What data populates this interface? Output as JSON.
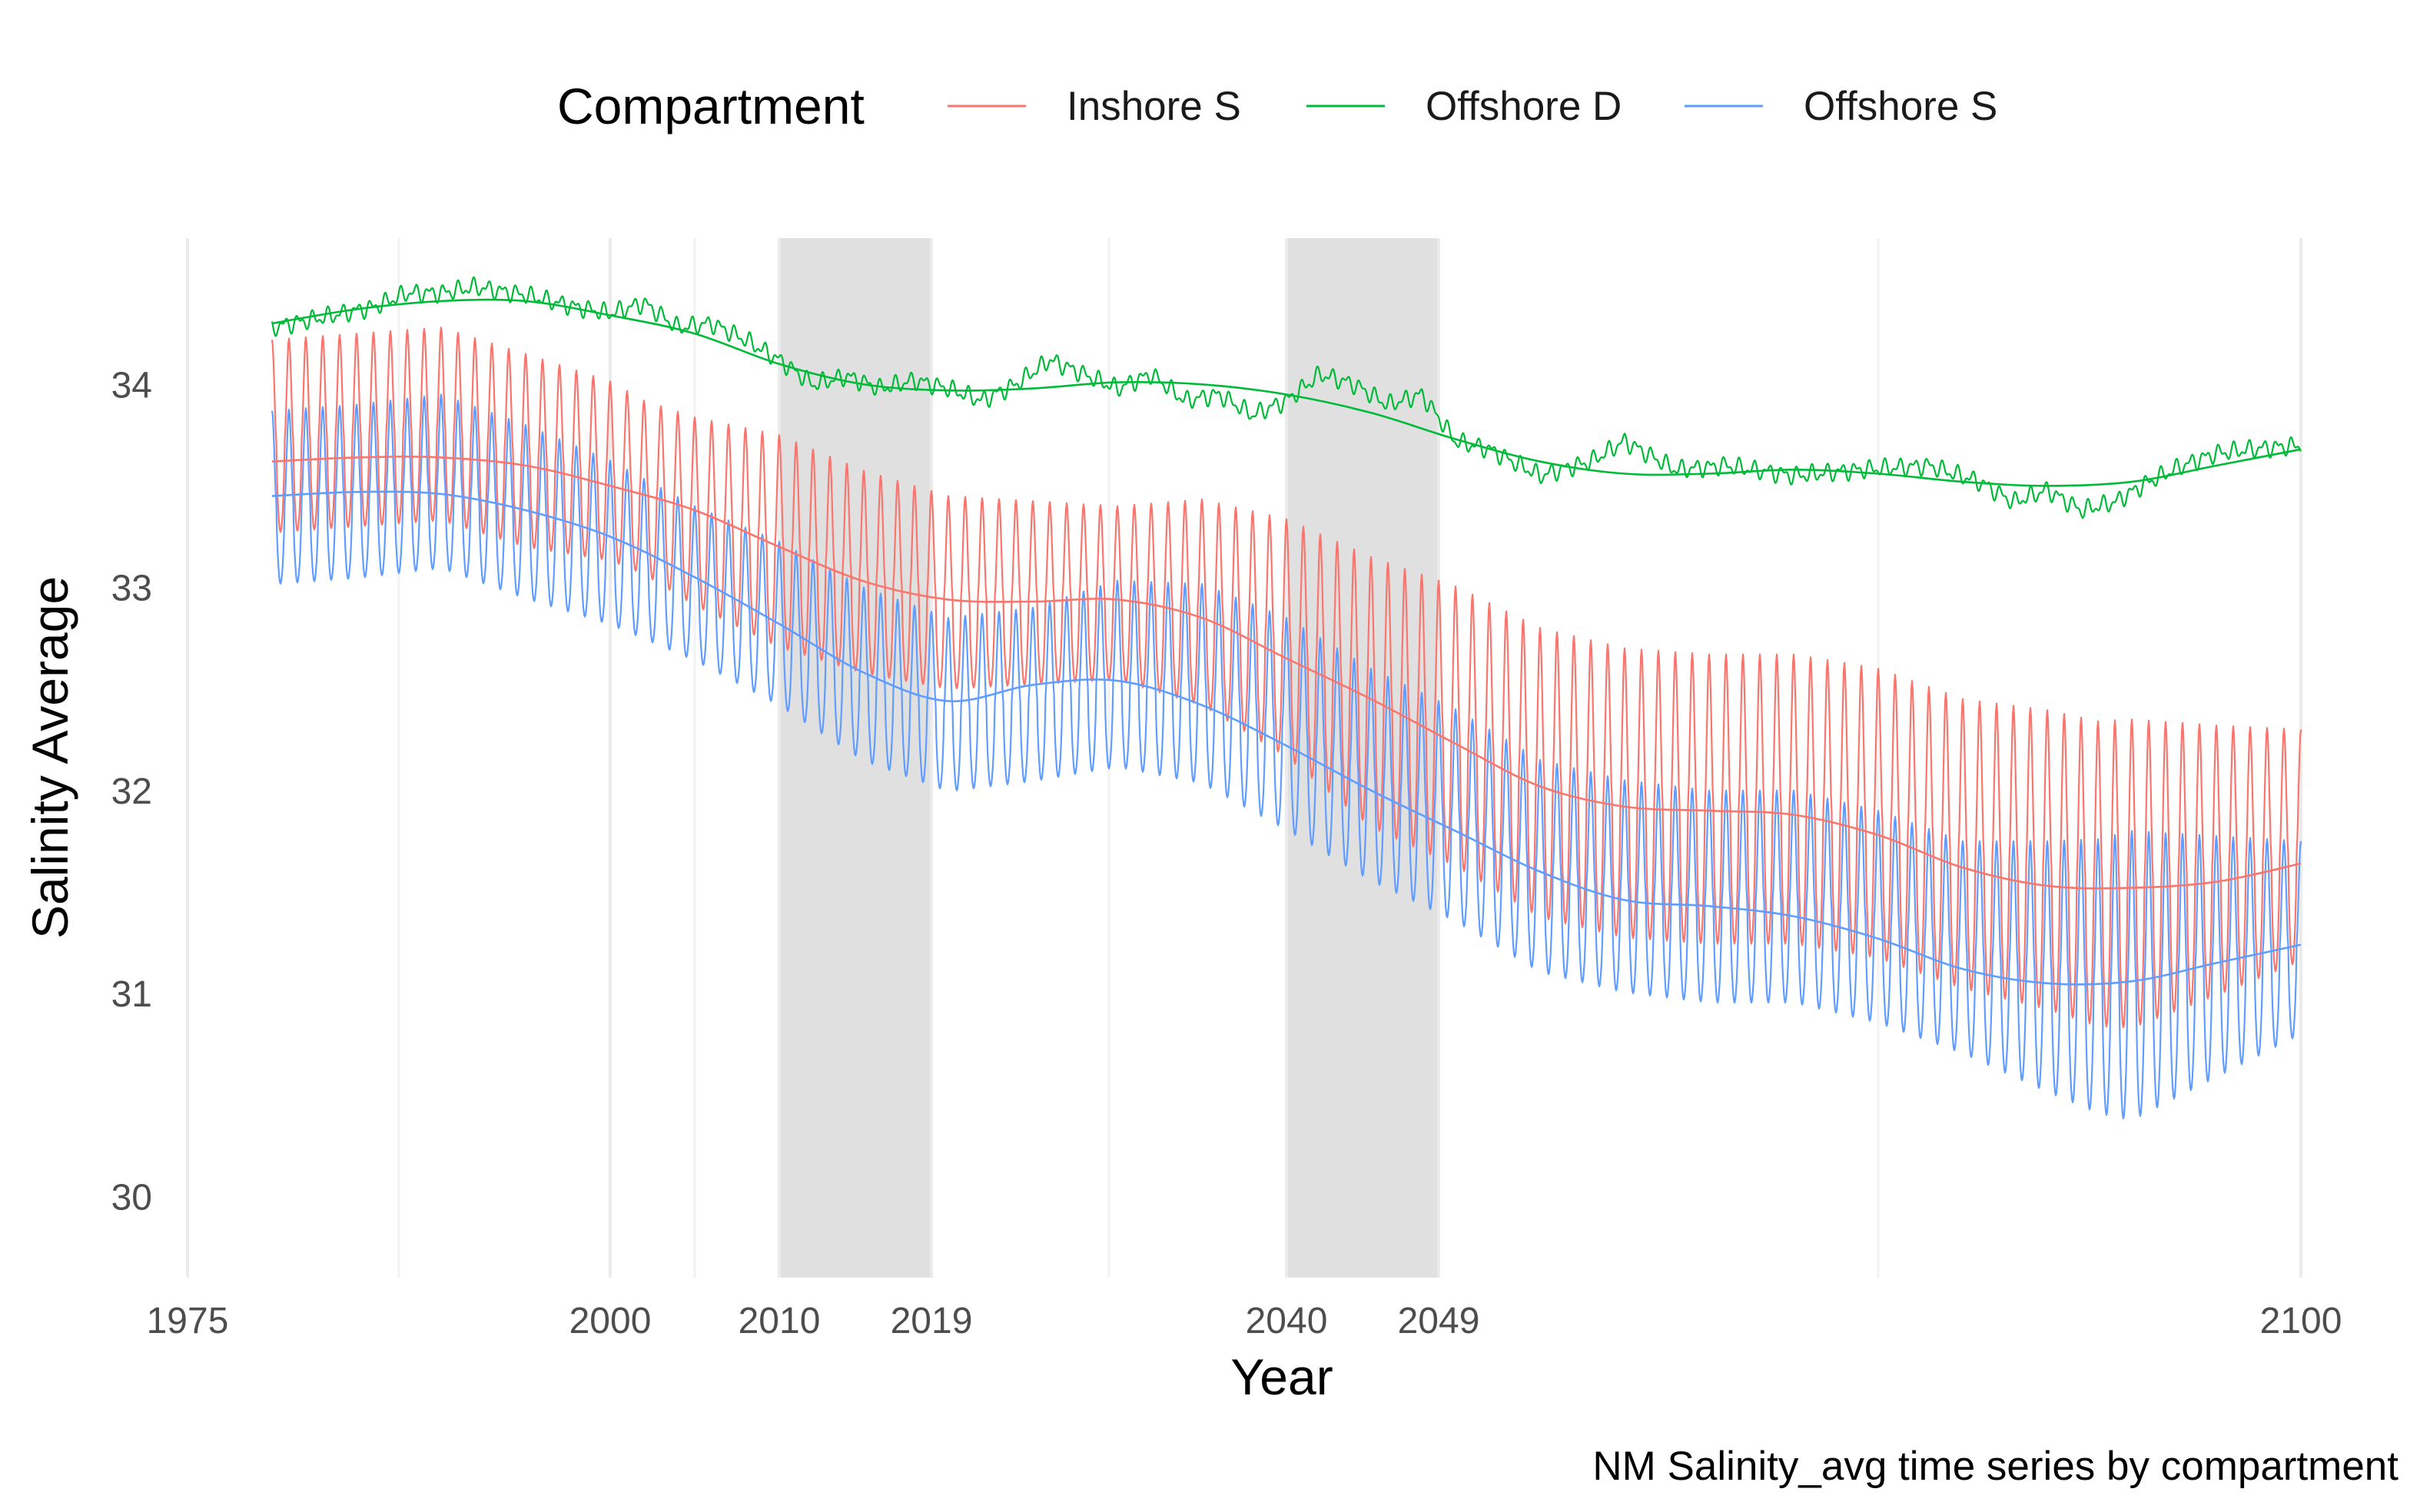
{
  "chart_data": {
    "type": "line",
    "caption": "NM Salinity_avg time series by compartment",
    "xlabel": "Year",
    "ylabel": "Salinity Average",
    "xlim": [
      1974.5,
      2100.5
    ],
    "ylim": [
      29.6,
      34.72
    ],
    "x_ticks": [
      1975,
      2000,
      2010,
      2019,
      2040,
      2049,
      2100
    ],
    "x_tick_labels": [
      "1975",
      "2000",
      "2010",
      "2019",
      "2040",
      "2049",
      "2100"
    ],
    "x_minor_gridlines": [
      1987.5,
      2005,
      2029.5,
      2075
    ],
    "y_ticks": [
      30,
      31,
      32,
      33,
      34
    ],
    "y_tick_labels": [
      "30",
      "31",
      "32",
      "33",
      "34"
    ],
    "grid": true,
    "shaded_periods": [
      {
        "start": 2010,
        "end": 2019
      },
      {
        "start": 2040,
        "end": 2049
      }
    ],
    "legend": {
      "title": "Compartment",
      "position": "top",
      "entries": [
        {
          "label": "Inshore S",
          "color": "#F8766D"
        },
        {
          "label": "Offshore D",
          "color": "#00BA38"
        },
        {
          "label": "Offshore S",
          "color": "#619CFF"
        }
      ]
    },
    "series": [
      {
        "name": "Inshore S",
        "color": "#F8766D",
        "seasonal": true,
        "seasonal_amplitude": [
          [
            1980,
            0.5
          ],
          [
            1995,
            0.5
          ],
          [
            2002,
            0.45
          ],
          [
            2010,
            0.55
          ],
          [
            2020,
            0.5
          ],
          [
            2030,
            0.45
          ],
          [
            2045,
            0.7
          ],
          [
            2055,
            0.75
          ],
          [
            2080,
            0.75
          ],
          [
            2090,
            0.8
          ],
          [
            2100,
            0.6
          ]
        ],
        "x": [
          1980,
          1985,
          1990,
          1995,
          2000,
          2005,
          2010,
          2015,
          2020,
          2025,
          2030,
          2035,
          2040,
          2045,
          2050,
          2055,
          2060,
          2065,
          2070,
          2075,
          2080,
          2085,
          2088,
          2090,
          2095,
          2100
        ],
        "values": [
          33.72,
          33.75,
          33.78,
          33.65,
          33.55,
          33.35,
          33.2,
          33.05,
          32.95,
          32.95,
          32.95,
          32.9,
          32.72,
          32.45,
          32.28,
          32.05,
          31.95,
          31.92,
          31.92,
          31.85,
          31.7,
          31.62,
          31.55,
          31.55,
          31.62,
          31.7
        ]
      },
      {
        "name": "Offshore D",
        "color": "#00BA38",
        "seasonal": false,
        "x": [
          1980,
          1983,
          1986,
          1988,
          1990,
          1992,
          1995,
          1998,
          2000,
          2002,
          2004,
          2006,
          2008,
          2010,
          2012,
          2014,
          2016,
          2018,
          2020,
          2022,
          2024,
          2026,
          2028,
          2030,
          2032,
          2034,
          2036,
          2038,
          2040,
          2042,
          2044,
          2046,
          2048,
          2050,
          2052,
          2055,
          2058,
          2060,
          2063,
          2066,
          2070,
          2074,
          2078,
          2081,
          2083,
          2085,
          2087,
          2089,
          2091,
          2093,
          2095,
          2097,
          2100
        ],
        "values": [
          34.28,
          34.33,
          34.38,
          34.45,
          34.45,
          34.48,
          34.44,
          34.38,
          34.35,
          34.4,
          34.28,
          34.3,
          34.22,
          34.12,
          34.0,
          34.04,
          33.98,
          34.02,
          33.98,
          33.92,
          34.0,
          34.12,
          34.05,
          33.98,
          34.05,
          33.92,
          33.95,
          33.85,
          33.92,
          34.05,
          34.0,
          33.9,
          33.95,
          33.72,
          33.68,
          33.55,
          33.62,
          33.72,
          33.58,
          33.6,
          33.55,
          33.58,
          33.6,
          33.52,
          33.42,
          33.48,
          33.38,
          33.42,
          33.52,
          33.6,
          33.66,
          33.68,
          33.7
        ]
      },
      {
        "name": "Offshore S",
        "color": "#619CFF",
        "seasonal": true,
        "seasonal_amplitude": [
          [
            1980,
            0.45
          ],
          [
            1995,
            0.45
          ],
          [
            2005,
            0.4
          ],
          [
            2015,
            0.45
          ],
          [
            2025,
            0.45
          ],
          [
            2040,
            0.55
          ],
          [
            2055,
            0.55
          ],
          [
            2080,
            0.55
          ],
          [
            2090,
            0.75
          ],
          [
            2100,
            0.5
          ]
        ],
        "x": [
          1980,
          1985,
          1990,
          1995,
          2000,
          2005,
          2010,
          2015,
          2020,
          2025,
          2030,
          2035,
          2040,
          2045,
          2050,
          2055,
          2060,
          2065,
          2070,
          2075,
          2080,
          2085,
          2088,
          2090,
          2095,
          2100
        ],
        "values": [
          33.42,
          33.45,
          33.5,
          33.35,
          33.2,
          33.0,
          32.8,
          32.55,
          32.4,
          32.45,
          32.55,
          32.5,
          32.3,
          32.05,
          31.85,
          31.6,
          31.5,
          31.45,
          31.45,
          31.35,
          31.2,
          31.1,
          31.05,
          31.05,
          31.15,
          31.25
        ]
      }
    ],
    "smooth_trends": [
      {
        "series": "Inshore S",
        "color": "#F8766D",
        "x": [
          1980,
          1985,
          1990,
          1995,
          2000,
          2005,
          2010,
          2015,
          2020,
          2025,
          2030,
          2035,
          2040,
          2045,
          2050,
          2055,
          2060,
          2065,
          2070,
          2075,
          2080,
          2085,
          2090,
          2095,
          2100
        ],
        "values": [
          33.62,
          33.64,
          33.64,
          33.6,
          33.5,
          33.38,
          33.2,
          33.03,
          32.94,
          32.93,
          32.94,
          32.85,
          32.65,
          32.45,
          32.23,
          32.02,
          31.92,
          31.9,
          31.88,
          31.78,
          31.62,
          31.53,
          31.52,
          31.55,
          31.64
        ]
      },
      {
        "series": "Offshore D",
        "color": "#00BA38",
        "x": [
          1980,
          1985,
          1990,
          1995,
          2000,
          2005,
          2010,
          2015,
          2020,
          2025,
          2030,
          2035,
          2040,
          2045,
          2050,
          2055,
          2060,
          2065,
          2070,
          2075,
          2080,
          2085,
          2090,
          2095,
          2100
        ],
        "values": [
          34.3,
          34.37,
          34.41,
          34.41,
          34.34,
          34.25,
          34.1,
          34.0,
          33.97,
          33.98,
          34.01,
          34.0,
          33.95,
          33.86,
          33.73,
          33.62,
          33.56,
          33.56,
          33.58,
          33.56,
          33.52,
          33.5,
          33.52,
          33.6,
          33.68
        ]
      },
      {
        "series": "Offshore S",
        "color": "#619CFF",
        "x": [
          1980,
          1985,
          1990,
          1995,
          2000,
          2005,
          2010,
          2015,
          2020,
          2025,
          2030,
          2035,
          2040,
          2045,
          2050,
          2055,
          2060,
          2065,
          2070,
          2075,
          2080,
          2085,
          2090,
          2095,
          2100
        ],
        "values": [
          33.45,
          33.47,
          33.46,
          33.38,
          33.25,
          33.05,
          32.82,
          32.58,
          32.44,
          32.52,
          32.54,
          32.42,
          32.22,
          32.0,
          31.8,
          31.6,
          31.46,
          31.43,
          31.38,
          31.27,
          31.12,
          31.05,
          31.06,
          31.15,
          31.24
        ]
      }
    ]
  }
}
